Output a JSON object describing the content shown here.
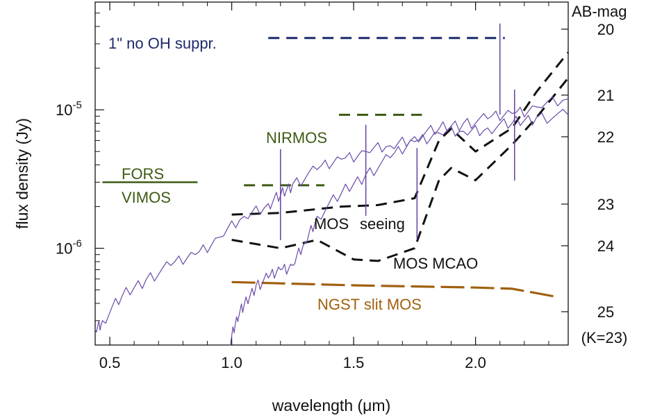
{
  "colors": {
    "spectrum": "#6a4aa8",
    "oh": "#1c2a6b",
    "fors_nirmos": "#3d5a12",
    "mos": "#111111",
    "ngst": "#a0600f"
  },
  "chart_data": {
    "type": "line",
    "xlabel": "wavelength (μm)",
    "ylabel": "flux density (Jy)",
    "xlim": [
      0.44,
      2.38
    ],
    "ylim": [
      2e-07,
      6e-05
    ],
    "yscale": "log",
    "xticks": [
      0.5,
      1.0,
      1.5,
      2.0
    ],
    "xtick_labels": [
      "0.5",
      "1.0",
      "1.5",
      "2.0"
    ],
    "yticks": [
      1e-06,
      1e-05
    ],
    "ytick_labels": [
      {
        "base": "10",
        "exp": "-6"
      },
      {
        "base": "10",
        "exp": "-5"
      }
    ],
    "right_axis": {
      "title": "AB-mag",
      "labels": [
        "20",
        "21",
        "22",
        "23",
        "24",
        "25"
      ],
      "note": "(K=23)"
    },
    "annotations": {
      "oh": "1\" no OH suppr.",
      "nirmos": "NIRMOS",
      "fors": "FORS",
      "vimos": "VIMOS",
      "mos_seeing_a": "MOS",
      "mos_seeing_b": "seeing",
      "mos_mcao": "MOS MCAO",
      "ngst": "NGST slit MOS"
    },
    "series": [
      {
        "style": "dash",
        "color_key": "oh",
        "x": [
          1.15,
          2.12
        ],
        "y": [
          3.3e-05,
          3.3e-05
        ]
      },
      {
        "style": "dash",
        "color_key": "fors_nirmos",
        "x": [
          1.44,
          1.78
        ],
        "y": [
          9.2e-06,
          9.2e-06
        ]
      },
      {
        "style": "dash",
        "color_key": "fors_nirmos",
        "x": [
          1.05,
          1.38
        ],
        "y": [
          2.85e-06,
          2.85e-06
        ]
      },
      {
        "style": "solid",
        "color_key": "fors_nirmos",
        "x": [
          0.47,
          0.86
        ],
        "y": [
          3e-06,
          3e-06
        ]
      },
      {
        "style": "dash",
        "color_key": "mos",
        "x": [
          1.0,
          1.2,
          1.45,
          1.6,
          1.75,
          1.85,
          1.9,
          2.0,
          2.15,
          2.25,
          2.38
        ],
        "y": [
          1.75e-06,
          1.8e-06,
          2e-06,
          2.05e-06,
          2.3e-06,
          6e-06,
          7.3e-06,
          5e-06,
          7.4e-06,
          1.35e-05,
          2.6e-05
        ]
      },
      {
        "style": "dash",
        "color_key": "mos",
        "x": [
          1.0,
          1.2,
          1.35,
          1.5,
          1.6,
          1.75,
          1.85,
          1.9,
          2.0,
          2.15,
          2.25,
          2.38
        ],
        "y": [
          1.15e-06,
          1e-06,
          1.15e-06,
          8.3e-07,
          8.1e-07,
          1e-06,
          3.1e-06,
          3.8e-06,
          3.1e-06,
          5.6e-06,
          8.8e-06,
          1.7e-05
        ]
      },
      {
        "style": "longdash",
        "color_key": "ngst",
        "x": [
          1.0,
          1.5,
          2.0,
          2.15,
          2.32
        ],
        "y": [
          5.7e-07,
          5.4e-07,
          5.2e-07,
          5.1e-07,
          4.5e-07
        ]
      },
      {
        "style": "spectrum",
        "color_key": "spectrum",
        "x": [
          0.44,
          0.47,
          0.55,
          0.65,
          0.75,
          0.85,
          0.95,
          1.05,
          1.15,
          1.2,
          1.25,
          1.35,
          1.45,
          1.55,
          1.65,
          1.75,
          1.85,
          1.95,
          2.05,
          2.15,
          2.25,
          2.38
        ],
        "y": [
          2.6e-07,
          3e-07,
          4.5e-07,
          6e-07,
          7.5e-07,
          9e-07,
          1.2e-06,
          1.7e-06,
          2.1e-06,
          2.4e-06,
          2.9e-06,
          3.7e-06,
          4.4e-06,
          5e-06,
          5.5e-06,
          6.4e-06,
          7.3e-06,
          8e-06,
          8.6e-06,
          9.4e-06,
          1.05e-05,
          1.2e-05
        ]
      },
      {
        "style": "spectrum",
        "color_key": "spectrum",
        "x": [
          0.99,
          1.02,
          1.05,
          1.1,
          1.15,
          1.2,
          1.25,
          1.3,
          1.35,
          1.45,
          1.55,
          1.65,
          1.75,
          1.85,
          1.95,
          2.05,
          2.15,
          2.25,
          2.38
        ],
        "y": [
          2e-07,
          3.2e-07,
          3.8e-07,
          5.4e-07,
          6.1e-07,
          7e-07,
          7.5e-07,
          1.1e-06,
          1.7e-06,
          2.5e-06,
          3.4e-06,
          4.5e-06,
          5.9e-06,
          6.8e-06,
          7e-06,
          7.4e-06,
          8e-06,
          8.8e-06,
          9.2e-06
        ]
      }
    ],
    "emission_lines": [
      {
        "x": 1.2,
        "peak": 5.2e-06
      },
      {
        "x": 1.55,
        "peak": 7.8e-06
      },
      {
        "x": 1.76,
        "peak": 5.3e-06
      },
      {
        "x": 2.1,
        "peak": 4.2e-05
      },
      {
        "x": 2.16,
        "peak": 1.4e-05
      }
    ]
  }
}
